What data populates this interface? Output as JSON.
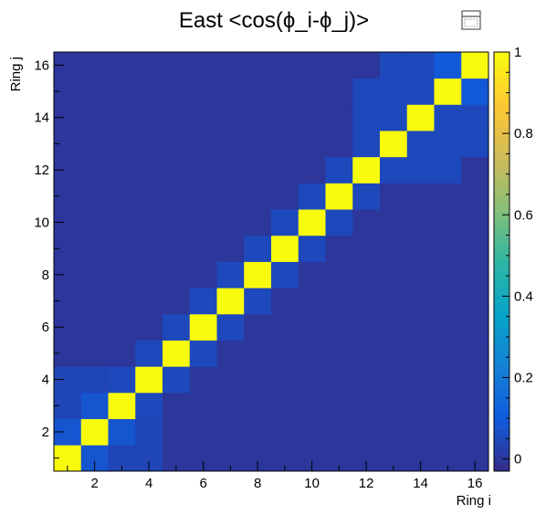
{
  "chart_data": {
    "type": "heatmap",
    "title": "East <cos(ϕ_i-ϕ_j)>",
    "xlabel": "Ring i",
    "ylabel": "Ring j",
    "x_range": [
      0.5,
      16.5
    ],
    "y_range": [
      0.5,
      16.5
    ],
    "x_bins": [
      1,
      2,
      3,
      4,
      5,
      6,
      7,
      8,
      9,
      10,
      11,
      12,
      13,
      14,
      15,
      16
    ],
    "y_bins": [
      1,
      2,
      3,
      4,
      5,
      6,
      7,
      8,
      9,
      10,
      11,
      12,
      13,
      14,
      15,
      16
    ],
    "x_ticks": [
      "2",
      "4",
      "6",
      "8",
      "10",
      "12",
      "14",
      "16"
    ],
    "y_ticks": [
      "2",
      "4",
      "6",
      "8",
      "10",
      "12",
      "14",
      "16"
    ],
    "z_range": [
      -0.03,
      1.0
    ],
    "z_ticks": [
      "0",
      "0.2",
      "0.4",
      "0.6",
      "0.8",
      "1"
    ],
    "colormap": [
      "#352a87",
      "#0f5cdd",
      "#1481d6",
      "#06a4ca",
      "#2eb7a4",
      "#87bf77",
      "#d1bb59",
      "#fec832",
      "#f9fb0e"
    ],
    "values": [
      [
        1.0,
        0.08,
        0.04,
        0.04,
        0.0,
        0.0,
        0.0,
        0.0,
        0.0,
        0.0,
        0.0,
        0.0,
        0.0,
        0.0,
        0.0,
        0.0
      ],
      [
        0.08,
        1.0,
        0.08,
        0.04,
        0.0,
        0.0,
        0.0,
        0.0,
        0.0,
        0.0,
        0.0,
        0.0,
        0.0,
        0.0,
        0.0,
        0.0
      ],
      [
        0.04,
        0.08,
        1.0,
        0.05,
        0.0,
        0.0,
        0.0,
        0.0,
        0.0,
        0.0,
        0.0,
        0.0,
        0.0,
        0.0,
        0.0,
        0.0
      ],
      [
        0.04,
        0.04,
        0.05,
        1.0,
        0.05,
        0.0,
        0.0,
        0.0,
        0.0,
        0.0,
        0.0,
        0.0,
        0.0,
        0.0,
        0.0,
        0.0
      ],
      [
        0.0,
        0.0,
        0.0,
        0.05,
        1.0,
        0.05,
        0.0,
        0.0,
        0.0,
        0.0,
        0.0,
        0.0,
        0.0,
        0.0,
        0.0,
        0.0
      ],
      [
        0.0,
        0.0,
        0.0,
        0.0,
        0.05,
        1.0,
        0.05,
        0.0,
        0.0,
        0.0,
        0.0,
        0.0,
        0.0,
        0.0,
        0.0,
        0.0
      ],
      [
        0.0,
        0.0,
        0.0,
        0.0,
        0.0,
        0.05,
        1.0,
        0.05,
        0.0,
        0.0,
        0.0,
        0.0,
        0.0,
        0.0,
        0.0,
        0.0
      ],
      [
        0.0,
        0.0,
        0.0,
        0.0,
        0.0,
        0.0,
        0.05,
        1.0,
        0.05,
        0.0,
        0.0,
        0.0,
        0.0,
        0.0,
        0.0,
        0.0
      ],
      [
        0.0,
        0.0,
        0.0,
        0.0,
        0.0,
        0.0,
        0.0,
        0.05,
        1.0,
        0.05,
        0.0,
        0.0,
        0.0,
        0.0,
        0.0,
        0.0
      ],
      [
        0.0,
        0.0,
        0.0,
        0.0,
        0.0,
        0.0,
        0.0,
        0.0,
        0.05,
        1.0,
        0.05,
        0.0,
        0.0,
        0.0,
        0.0,
        0.0
      ],
      [
        0.0,
        0.0,
        0.0,
        0.0,
        0.0,
        0.0,
        0.0,
        0.0,
        0.0,
        0.05,
        1.0,
        0.05,
        0.0,
        0.0,
        0.0,
        0.0
      ],
      [
        0.0,
        0.0,
        0.0,
        0.0,
        0.0,
        0.0,
        0.0,
        0.0,
        0.0,
        0.0,
        0.05,
        1.0,
        0.05,
        0.05,
        0.05,
        0.0
      ],
      [
        0.0,
        0.0,
        0.0,
        0.0,
        0.0,
        0.0,
        0.0,
        0.0,
        0.0,
        0.0,
        0.0,
        0.05,
        1.0,
        0.05,
        0.05,
        0.05
      ],
      [
        0.0,
        0.0,
        0.0,
        0.0,
        0.0,
        0.0,
        0.0,
        0.0,
        0.0,
        0.0,
        0.0,
        0.05,
        0.05,
        1.0,
        0.05,
        0.05
      ],
      [
        0.0,
        0.0,
        0.0,
        0.0,
        0.0,
        0.0,
        0.0,
        0.0,
        0.0,
        0.0,
        0.0,
        0.05,
        0.05,
        0.05,
        1.0,
        0.09
      ],
      [
        0.0,
        0.0,
        0.0,
        0.0,
        0.0,
        0.0,
        0.0,
        0.0,
        0.0,
        0.0,
        0.0,
        0.0,
        0.05,
        0.05,
        0.09,
        1.0
      ]
    ]
  }
}
